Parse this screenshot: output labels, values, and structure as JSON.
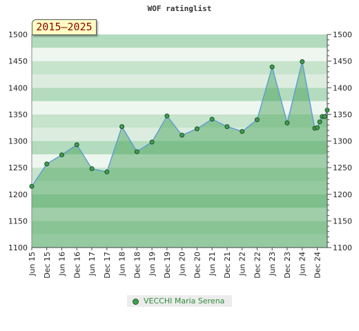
{
  "chart_data": {
    "type": "area",
    "title": "WOF ratinglist",
    "period_badge": "2015–2025",
    "ylim": [
      1100,
      1500
    ],
    "y_ticks": [
      1100,
      1150,
      1200,
      1250,
      1300,
      1350,
      1400,
      1450,
      1500
    ],
    "x_tick_labels": [
      "Jun 15",
      "Dec 15",
      "Jun 16",
      "Dec 16",
      "Jun 17",
      "Dec 17",
      "Jun 18",
      "Dec 18",
      "Jun 19",
      "Dec 19",
      "Jun 20",
      "Dec 20",
      "Jun 21",
      "Dec 21",
      "Jun 22",
      "Dec 22",
      "Jun 23",
      "Dec 23",
      "Jun 24",
      "Dec 24"
    ],
    "series": [
      {
        "name": "VECCHI Maria Serena",
        "color": "#5b9bd5",
        "marker_color": "#3f9e4f",
        "x": [
          "Jun 15",
          "Dec 15",
          "Jun 16",
          "Dec 16",
          "Jun 17",
          "Dec 17",
          "Jun 18",
          "Dec 18",
          "Jun 19",
          "Dec 19",
          "Jun 20",
          "Dec 20",
          "Jun 21",
          "Dec 21",
          "Jun 22",
          "Dec 22",
          "Jun 23",
          "Dec 23",
          "Jun 24",
          "Nov 24",
          "Dec 24",
          "Jan 25",
          "Feb 25",
          "Mar 25",
          "Apr 25"
        ],
        "values": [
          1215,
          1257,
          1274,
          1293,
          1248,
          1242,
          1327,
          1280,
          1298,
          1347,
          1311,
          1323,
          1341,
          1327,
          1318,
          1340,
          1439,
          1334,
          1449,
          1324,
          1325,
          1336,
          1346,
          1346,
          1358
        ]
      }
    ],
    "grid": true,
    "legend_position": "bottom-center"
  }
}
